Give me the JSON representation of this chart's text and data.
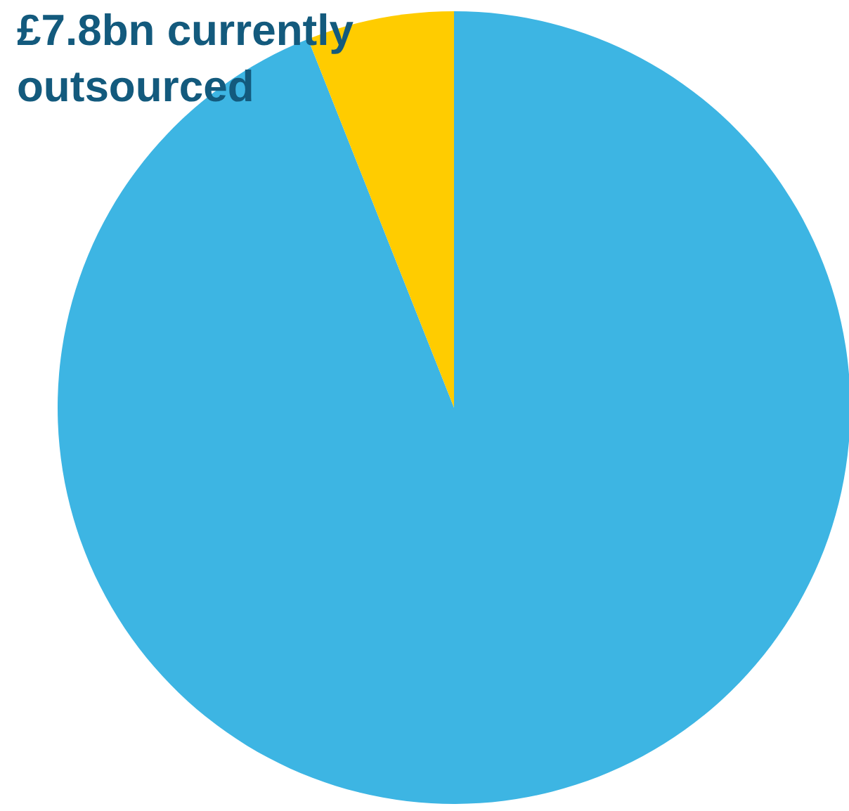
{
  "chart_data": {
    "type": "pie",
    "categories": [
      null,
      null
    ],
    "values": [
      94,
      6
    ],
    "colors": [
      "#3db5e3",
      "#ffcc00"
    ],
    "annotations": [
      "£7.8bn currently outsourced"
    ]
  }
}
